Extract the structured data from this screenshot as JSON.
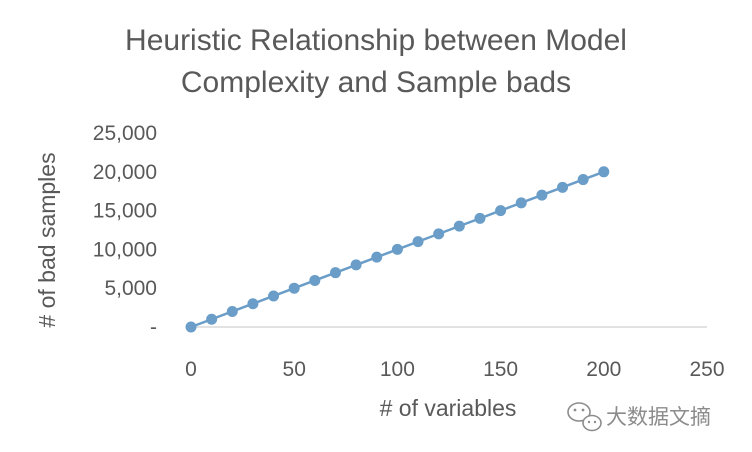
{
  "chart_data": {
    "type": "scatter",
    "title_lines": [
      "Heuristic Relationship between Model",
      "Complexity and Sample bads"
    ],
    "xlabel": "# of variables",
    "ylabel": "# of bad samples",
    "xlim": [
      0,
      250
    ],
    "ylim": [
      0,
      25000
    ],
    "x_ticks": [
      0,
      50,
      100,
      150,
      200,
      250
    ],
    "x_tick_labels": [
      "0",
      "50",
      "100",
      "150",
      "200",
      "250"
    ],
    "y_ticks": [
      0,
      5000,
      10000,
      15000,
      20000,
      25000
    ],
    "y_tick_labels": [
      "-",
      "5,000",
      "10,000",
      "15,000",
      "20,000",
      "25,000"
    ],
    "grid": false,
    "legend": "none",
    "series": [
      {
        "color": "#6a9dc8",
        "x": [
          0,
          10,
          20,
          30,
          40,
          50,
          60,
          70,
          80,
          90,
          100,
          110,
          120,
          130,
          140,
          150,
          160,
          170,
          180,
          190,
          200
        ],
        "y": [
          0,
          1000,
          2000,
          3000,
          4000,
          5000,
          6000,
          7000,
          8000,
          9000,
          10000,
          11000,
          12000,
          13000,
          14000,
          15000,
          16000,
          17000,
          18000,
          19000,
          20000
        ]
      }
    ]
  },
  "watermark": {
    "icon": "wechat-icon",
    "text": "大数据文摘"
  }
}
